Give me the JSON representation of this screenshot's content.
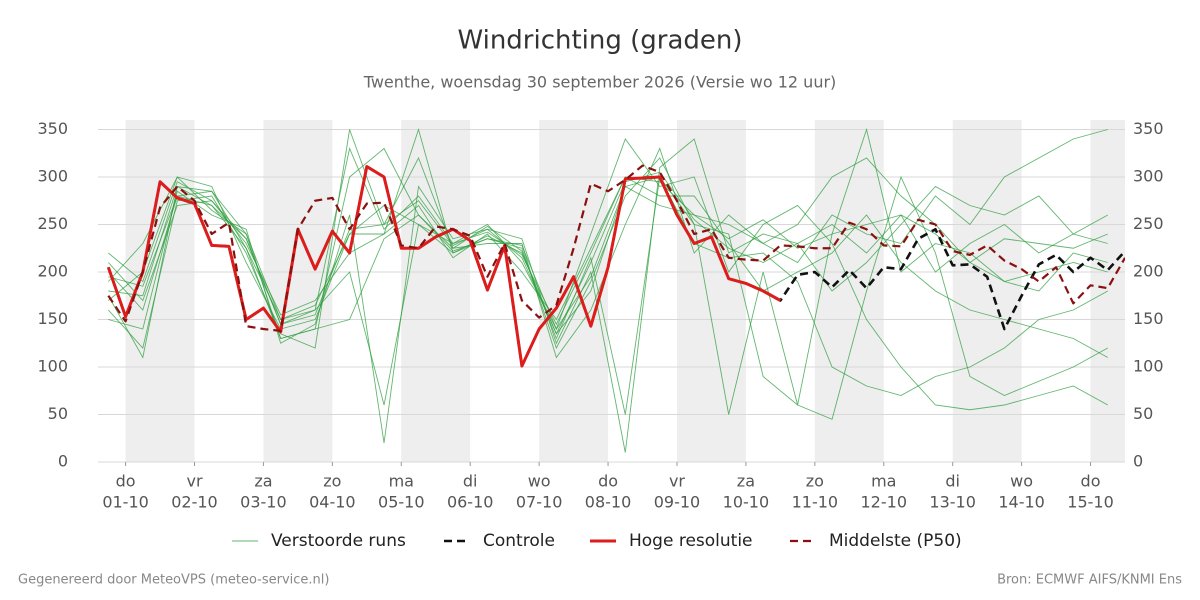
{
  "chart_data": {
    "type": "line",
    "title": "Windrichting (graden)",
    "subtitle": "Twenthe, woensdag 30 september 2026 (Versie wo 12 uur)",
    "footer_left": "Gegenereerd door MeteoVPS (meteo-service.nl)",
    "footer_right": "Bron: ECMWF AIFS/KNMI Ens",
    "xlim": [
      0.6,
      15.5
    ],
    "ylim": [
      0,
      360
    ],
    "yticks": [
      0,
      50,
      100,
      150,
      200,
      250,
      300,
      350
    ],
    "grid": true,
    "xticks": [
      {
        "value": 1,
        "label": [
          "do",
          "01-10"
        ]
      },
      {
        "value": 2,
        "label": [
          "vr",
          "02-10"
        ]
      },
      {
        "value": 3,
        "label": [
          "za",
          "03-10"
        ]
      },
      {
        "value": 4,
        "label": [
          "zo",
          "04-10"
        ]
      },
      {
        "value": 5,
        "label": [
          "ma",
          "05-10"
        ]
      },
      {
        "value": 6,
        "label": [
          "di",
          "06-10"
        ]
      },
      {
        "value": 7,
        "label": [
          "wo",
          "07-10"
        ]
      },
      {
        "value": 8,
        "label": [
          "do",
          "08-10"
        ]
      },
      {
        "value": 9,
        "label": [
          "vr",
          "09-10"
        ]
      },
      {
        "value": 10,
        "label": [
          "za",
          "10-10"
        ]
      },
      {
        "value": 11,
        "label": [
          "zo",
          "11-10"
        ]
      },
      {
        "value": 12,
        "label": [
          "ma",
          "12-10"
        ]
      },
      {
        "value": 13,
        "label": [
          "di",
          "13-10"
        ]
      },
      {
        "value": 14,
        "label": [
          "wo",
          "14-10"
        ]
      },
      {
        "value": 15,
        "label": [
          "do",
          "15-10"
        ]
      }
    ],
    "ensemble": {
      "name": "Verstoorde runs",
      "color": "#2e9e3e",
      "x": [
        0.75,
        1.25,
        1.75,
        2.25,
        2.75,
        3.25,
        3.75,
        4.25,
        4.75,
        5.25,
        5.75,
        6.25,
        6.75,
        7.25,
        7.75,
        8.25,
        8.75,
        9.25,
        9.75,
        10.25,
        10.75,
        11.25,
        11.75,
        12.25,
        12.75,
        13.25,
        13.75,
        14.25,
        14.75,
        15.25
      ],
      "runs": [
        [
          180,
          175,
          290,
          270,
          235,
          145,
          155,
          245,
          250,
          275,
          228,
          245,
          215,
          135,
          210,
          295,
          305,
          255,
          225,
          210,
          230,
          250,
          220,
          260,
          240,
          210,
          235,
          230,
          225,
          240
        ],
        [
          200,
          160,
          280,
          285,
          225,
          130,
          140,
          300,
          330,
          260,
          222,
          235,
          225,
          120,
          190,
          280,
          320,
          250,
          240,
          90,
          60,
          45,
          180,
          300,
          220,
          90,
          70,
          85,
          100,
          120
        ],
        [
          170,
          200,
          300,
          265,
          240,
          150,
          160,
          200,
          60,
          250,
          230,
          250,
          210,
          140,
          240,
          340,
          290,
          300,
          200,
          250,
          270,
          230,
          150,
          100,
          60,
          55,
          60,
          70,
          80,
          60
        ],
        [
          160,
          120,
          275,
          280,
          220,
          135,
          120,
          350,
          250,
          320,
          225,
          230,
          230,
          110,
          160,
          250,
          330,
          220,
          260,
          230,
          210,
          260,
          240,
          230,
          280,
          250,
          300,
          320,
          340,
          350
        ],
        [
          220,
          190,
          295,
          275,
          230,
          155,
          170,
          220,
          240,
          270,
          215,
          240,
          200,
          150,
          225,
          300,
          280,
          280,
          230,
          180,
          200,
          220,
          260,
          210,
          180,
          160,
          150,
          140,
          130,
          110
        ],
        [
          150,
          140,
          285,
          260,
          245,
          125,
          145,
          260,
          20,
          290,
          235,
          245,
          235,
          125,
          200,
          10,
          310,
          340,
          220,
          240,
          230,
          180,
          210,
          250,
          290,
          270,
          260,
          280,
          240,
          230
        ],
        [
          190,
          230,
          300,
          290,
          210,
          140,
          150,
          240,
          270,
          250,
          220,
          238,
          220,
          135,
          180,
          290,
          300,
          250,
          50,
          200,
          60,
          240,
          350,
          200,
          230,
          220,
          190,
          200,
          210,
          200
        ],
        [
          210,
          170,
          270,
          275,
          235,
          145,
          160,
          330,
          245,
          280,
          230,
          242,
          218,
          145,
          220,
          300,
          295,
          260,
          235,
          255,
          225,
          240,
          250,
          260,
          200,
          230,
          250,
          220,
          240,
          260
        ],
        [
          175,
          110,
          290,
          285,
          240,
          130,
          140,
          150,
          235,
          260,
          225,
          248,
          222,
          130,
          215,
          50,
          300,
          230,
          215,
          220,
          190,
          100,
          80,
          70,
          90,
          100,
          120,
          150,
          160,
          180
        ],
        [
          195,
          185,
          280,
          270,
          225,
          150,
          165,
          240,
          240,
          350,
          220,
          235,
          228,
          140,
          195,
          290,
          270,
          260,
          250,
          230,
          250,
          300,
          320,
          280,
          250,
          210,
          190,
          180,
          220,
          210
        ]
      ]
    },
    "x": [
      0.75,
      1,
      1.25,
      1.5,
      1.75,
      2,
      2.25,
      2.5,
      2.75,
      3,
      3.25,
      3.5,
      3.75,
      4,
      4.25,
      4.5,
      4.75,
      5,
      5.25,
      5.5,
      5.75,
      6,
      6.25,
      6.5,
      6.75,
      7,
      7.25,
      7.5,
      7.75,
      8,
      8.25,
      8.5,
      8.75,
      9,
      9.25,
      9.5,
      9.75,
      10,
      10.25,
      10.5,
      10.75,
      11,
      11.25,
      11.5,
      11.75,
      12,
      12.25,
      12.5,
      12.75,
      13,
      13.25,
      13.5,
      13.75,
      14,
      14.25,
      14.5,
      14.75,
      15,
      15.25,
      15.5
    ],
    "series": [
      {
        "name": "Controle",
        "color": "#111111",
        "dash": true,
        "width": 2.6,
        "values": [
          205,
          153,
          200,
          295,
          278,
          272,
          228,
          227,
          150,
          162,
          137,
          245,
          203,
          243,
          220,
          311,
          300,
          225,
          225,
          237,
          245,
          233,
          181,
          228,
          101,
          140,
          162,
          195,
          143,
          205,
          298,
          299,
          300,
          260,
          230,
          237,
          193,
          188,
          180,
          170,
          197,
          200,
          184,
          202,
          183,
          205,
          203,
          235,
          245,
          207,
          208,
          195,
          140,
          175,
          208,
          218,
          200,
          215,
          202,
          222
        ]
      },
      {
        "name": "Hoge resolutie",
        "color": "#dd1c1c",
        "dash": false,
        "width": 3,
        "values": [
          205,
          153,
          200,
          295,
          278,
          272,
          228,
          227,
          150,
          162,
          137,
          245,
          203,
          243,
          220,
          311,
          300,
          225,
          225,
          237,
          245,
          233,
          181,
          228,
          101,
          140,
          162,
          195,
          143,
          205,
          298,
          299,
          300,
          260,
          230,
          237,
          193,
          188,
          180,
          170,
          null,
          null,
          null,
          null,
          null,
          null,
          null,
          null,
          null,
          null,
          null,
          null,
          null,
          null,
          null,
          null,
          null,
          null,
          null,
          null
        ]
      },
      {
        "name": "Middelste (P50)",
        "color": "#8b1010",
        "dash": true,
        "width": 2.2,
        "values": [
          175,
          148,
          200,
          268,
          290,
          275,
          240,
          252,
          143,
          140,
          138,
          245,
          275,
          278,
          245,
          272,
          273,
          228,
          225,
          248,
          245,
          238,
          195,
          230,
          170,
          152,
          165,
          225,
          293,
          285,
          297,
          312,
          305,
          275,
          240,
          245,
          215,
          213,
          212,
          228,
          227,
          225,
          225,
          252,
          245,
          228,
          227,
          255,
          250,
          222,
          218,
          228,
          212,
          203,
          190,
          205,
          167,
          186,
          183,
          215
        ]
      }
    ]
  }
}
